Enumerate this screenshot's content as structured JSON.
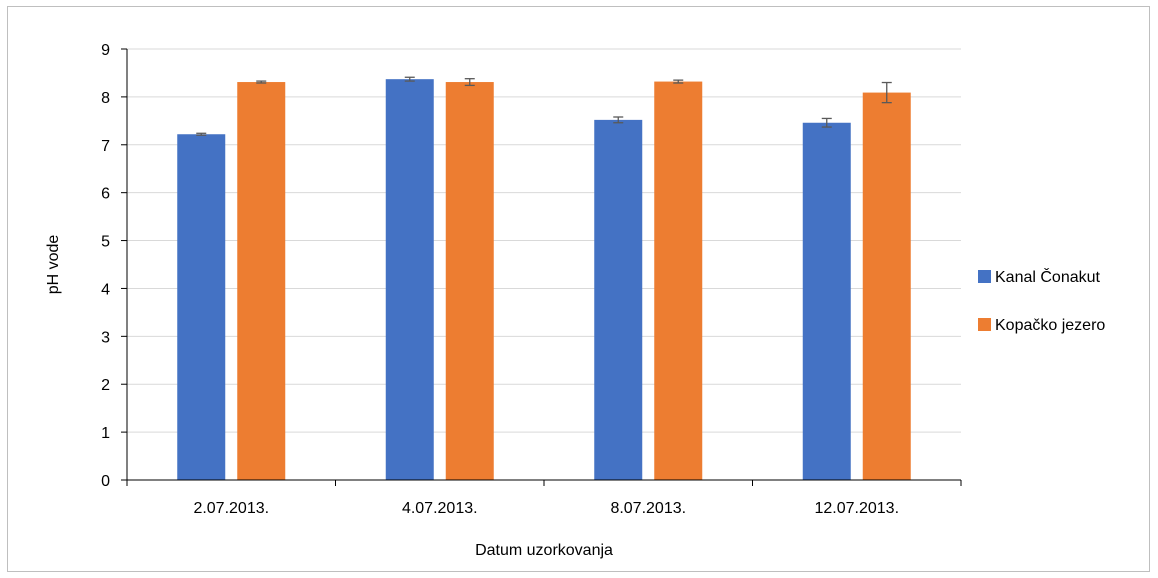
{
  "chart_data": {
    "type": "bar",
    "categories": [
      "2.07.2013.",
      "4.07.2013.",
      "8.07.2013.",
      "12.07.2013."
    ],
    "series": [
      {
        "name": "Kanal Čonakut",
        "color": "#4472C4",
        "values": [
          7.22,
          8.37,
          7.52,
          7.46
        ],
        "errors": [
          0.02,
          0.04,
          0.06,
          0.09
        ]
      },
      {
        "name": "Kopačko jezero",
        "color": "#ED7D31",
        "values": [
          8.31,
          8.31,
          8.32,
          8.09
        ],
        "errors": [
          0.02,
          0.07,
          0.03,
          0.21
        ]
      }
    ],
    "title": "",
    "xlabel": "Datum uzorkovanja",
    "ylabel": "pH vode",
    "ylim": [
      0,
      9
    ],
    "yticks": [
      "0",
      "1",
      "2",
      "3",
      "4",
      "5",
      "6",
      "7",
      "8",
      "9"
    ],
    "grid": true,
    "legend_position": "right"
  }
}
